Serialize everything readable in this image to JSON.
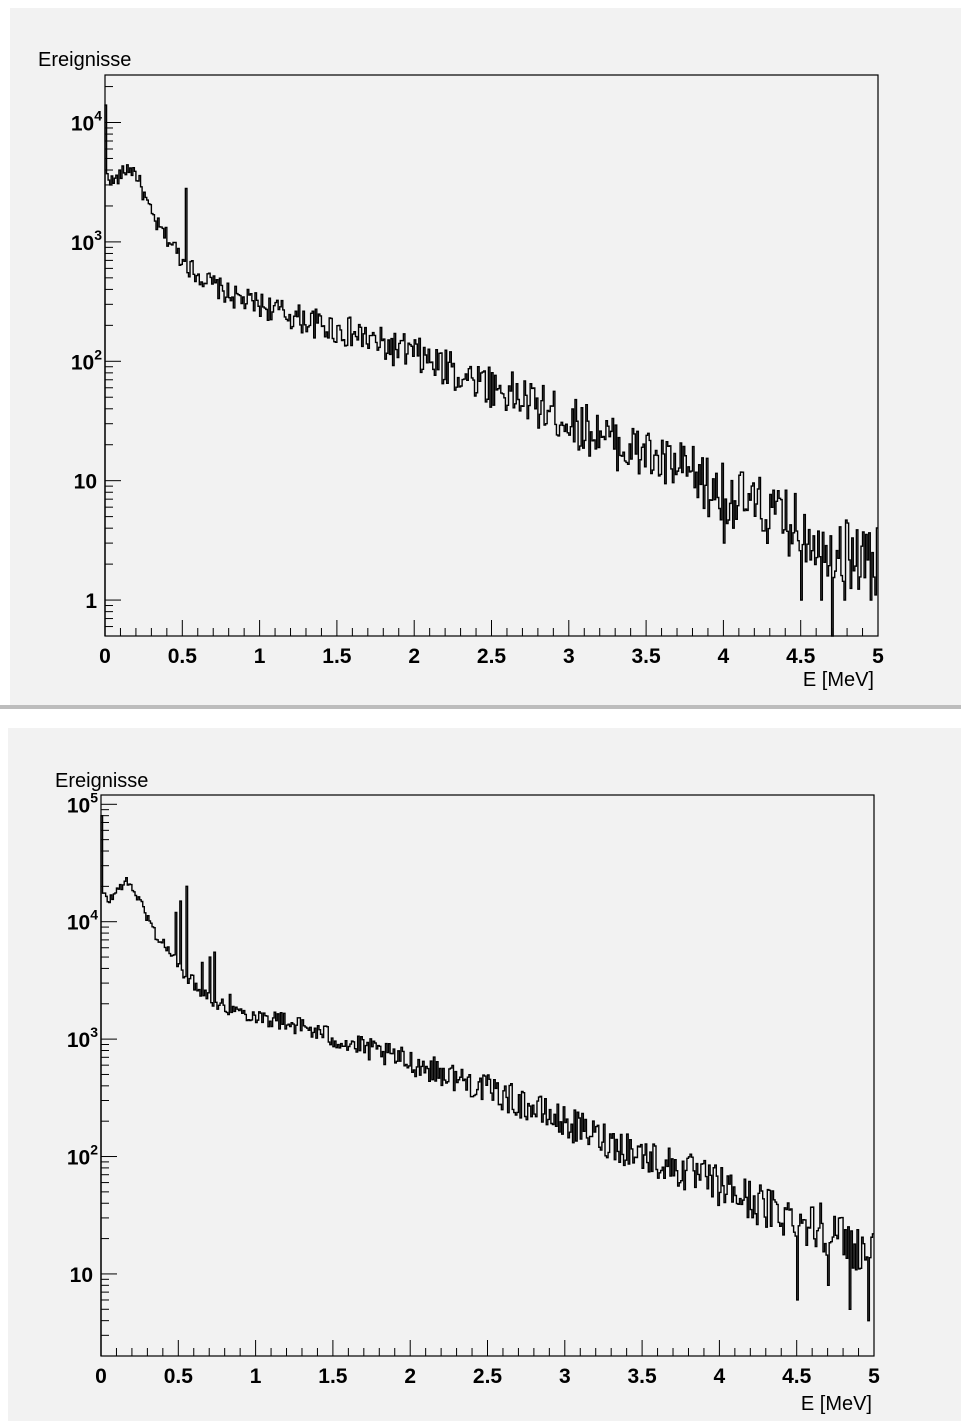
{
  "chart_data": [
    {
      "type": "histogram",
      "ylabel": "Ereignisse",
      "xlabel": "E [MeV]",
      "xlim": [
        0,
        5
      ],
      "ylim": [
        0.5,
        25000
      ],
      "yscale": "log",
      "grid": false,
      "x_ticks": [
        "0",
        "0.5",
        "1",
        "1.5",
        "2",
        "2.5",
        "3",
        "3.5",
        "4",
        "4.5",
        "5"
      ],
      "y_ticks": [
        {
          "value": 1,
          "base": "1",
          "exp": ""
        },
        {
          "value": 10,
          "base": "10",
          "exp": ""
        },
        {
          "value": 100,
          "base": "10",
          "exp": "2"
        },
        {
          "value": 1000,
          "base": "10",
          "exp": "3"
        },
        {
          "value": 10000,
          "base": "10",
          "exp": "4"
        }
      ],
      "series": [
        {
          "step": 0.01,
          "points": [
            [
              0,
              4000
            ],
            [
              0.05,
              3150
            ],
            [
              0.1,
              3600
            ],
            [
              0.15,
              4200
            ],
            [
              0.2,
              3800
            ],
            [
              0.25,
              2500
            ],
            [
              0.3,
              1700
            ],
            [
              0.35,
              1300
            ],
            [
              0.4,
              1100
            ],
            [
              0.45,
              900
            ],
            [
              0.5,
              700
            ],
            [
              0.6,
              530
            ],
            [
              0.7,
              440
            ],
            [
              0.8,
              360
            ],
            [
              0.9,
              320
            ],
            [
              1,
              300
            ],
            [
              1.2,
              240
            ],
            [
              1.4,
              200
            ],
            [
              1.6,
              170
            ],
            [
              1.8,
              135
            ],
            [
              2,
              115
            ],
            [
              2.2,
              85
            ],
            [
              2.4,
              70
            ],
            [
              2.6,
              55
            ],
            [
              2.8,
              42
            ],
            [
              3,
              32
            ],
            [
              3.2,
              24
            ],
            [
              3.4,
              18
            ],
            [
              3.6,
              14
            ],
            [
              3.8,
              11
            ],
            [
              4,
              8
            ],
            [
              4.2,
              6
            ],
            [
              4.4,
              4.5
            ],
            [
              4.6,
              3.5
            ],
            [
              4.8,
              2.5
            ],
            [
              5,
              2
            ]
          ],
          "peaks": [
            [
              0.001,
              14000
            ],
            [
              0.52,
              2800
            ],
            [
              1.67,
              170
            ],
            [
              2.23,
              120
            ],
            [
              2.42,
              68
            ],
            [
              3.2,
              26
            ],
            [
              3.5,
              24
            ],
            [
              4,
              6
            ]
          ],
          "dips": [
            [
              3.9,
              5
            ],
            [
              4.0,
              3
            ],
            [
              4.5,
              1
            ],
            [
              4.63,
              1
            ],
            [
              4.7,
              0.5
            ],
            [
              4.78,
              1
            ],
            [
              4.95,
              1
            ]
          ],
          "noise_amp": 0.13
        }
      ]
    },
    {
      "type": "histogram",
      "ylabel": "Ereignisse",
      "xlabel": "E [MeV]",
      "xlim": [
        0,
        5
      ],
      "ylim": [
        2,
        120000
      ],
      "yscale": "log",
      "grid": false,
      "x_ticks": [
        "0",
        "0.5",
        "1",
        "1.5",
        "2",
        "2.5",
        "3",
        "3.5",
        "4",
        "4.5",
        "5"
      ],
      "y_ticks": [
        {
          "value": 10,
          "base": "10",
          "exp": ""
        },
        {
          "value": 100,
          "base": "10",
          "exp": "2"
        },
        {
          "value": 1000,
          "base": "10",
          "exp": "3"
        },
        {
          "value": 10000,
          "base": "10",
          "exp": "4"
        },
        {
          "value": 100000,
          "base": "10",
          "exp": "5"
        }
      ],
      "series": [
        {
          "step": 0.01,
          "points": [
            [
              0,
              18000
            ],
            [
              0.05,
              15000
            ],
            [
              0.1,
              18000
            ],
            [
              0.15,
              22000
            ],
            [
              0.2,
              20000
            ],
            [
              0.25,
              15000
            ],
            [
              0.3,
              11000
            ],
            [
              0.35,
              8000
            ],
            [
              0.4,
              6500
            ],
            [
              0.45,
              5500
            ],
            [
              0.5,
              4200
            ],
            [
              0.6,
              3000
            ],
            [
              0.7,
              2300
            ],
            [
              0.8,
              1850
            ],
            [
              0.9,
              1700
            ],
            [
              1,
              1600
            ],
            [
              1.2,
              1400
            ],
            [
              1.4,
              1150
            ],
            [
              1.6,
              920
            ],
            [
              1.8,
              760
            ],
            [
              2,
              640
            ],
            [
              2.2,
              520
            ],
            [
              2.4,
              420
            ],
            [
              2.6,
              330
            ],
            [
              2.8,
              255
            ],
            [
              3,
              195
            ],
            [
              3.2,
              150
            ],
            [
              3.4,
              118
            ],
            [
              3.6,
              92
            ],
            [
              3.8,
              72
            ],
            [
              4,
              56
            ],
            [
              4.2,
              42
            ],
            [
              4.4,
              33
            ],
            [
              4.6,
              26
            ],
            [
              4.8,
              20
            ],
            [
              5,
              14
            ]
          ],
          "peaks": [
            [
              0.001,
              80000
            ],
            [
              0.48,
              12000
            ],
            [
              0.51,
              15000
            ],
            [
              0.55,
              20000
            ],
            [
              0.65,
              4500
            ],
            [
              0.7,
              5000
            ],
            [
              0.73,
              5500
            ],
            [
              0.83,
              2400
            ],
            [
              1.4,
              1300
            ],
            [
              4.31,
              130
            ],
            [
              4.51,
              60
            ],
            [
              4.65,
              40
            ],
            [
              4.84,
              30
            ]
          ],
          "dips": [
            [
              4.3,
              25
            ],
            [
              4.51,
              6
            ],
            [
              4.7,
              8
            ],
            [
              4.85,
              5
            ],
            [
              4.97,
              4
            ]
          ],
          "noise_amp": 0.09
        }
      ]
    }
  ]
}
